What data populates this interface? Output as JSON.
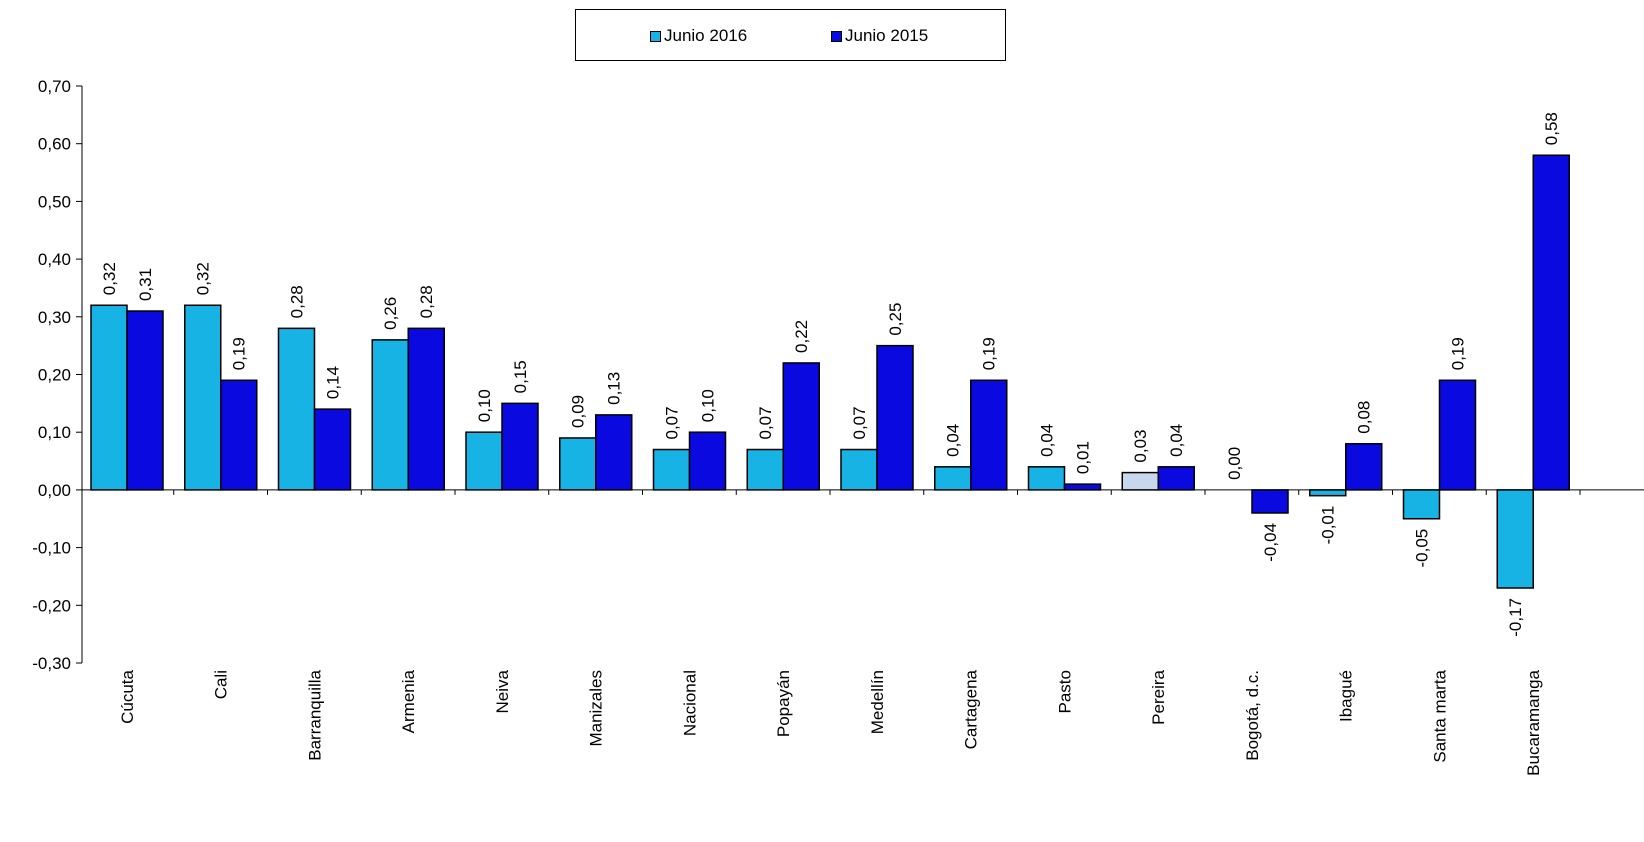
{
  "legend": {
    "series_1": "Junio 2016",
    "series_2": "Junio 2015"
  },
  "colors": {
    "series_1": "#16B3E4",
    "series_2": "#0A0AE0",
    "pereira_2016": "#C8D6EE"
  },
  "chart_data": {
    "type": "bar",
    "categories": [
      "Cúcuta",
      "Cali",
      "Barranquilla",
      "Armenia",
      "Neiva",
      "Manizales",
      "Nacional",
      "Popayán",
      "Medellín",
      "Cartagena",
      "Pasto",
      "Pereira",
      "Bogotá, d.c.",
      "Ibagué",
      "Santa marta",
      "Bucaramanga"
    ],
    "series": [
      {
        "name": "Junio 2016",
        "values": [
          0.32,
          0.32,
          0.28,
          0.26,
          0.1,
          0.09,
          0.07,
          0.07,
          0.07,
          0.04,
          0.04,
          0.03,
          0.0,
          -0.01,
          -0.05,
          -0.17
        ]
      },
      {
        "name": "Junio 2015",
        "values": [
          0.31,
          0.19,
          0.14,
          0.28,
          0.15,
          0.13,
          0.1,
          0.22,
          0.25,
          0.19,
          0.01,
          0.04,
          -0.04,
          0.08,
          0.19,
          0.58
        ]
      }
    ],
    "ylim": [
      -0.3,
      0.7
    ],
    "yticks": [
      "0,70",
      "0,60",
      "0,50",
      "0,40",
      "0,30",
      "0,20",
      "0,10",
      "0,00",
      "-0,10",
      "-0,20",
      "-0,30"
    ],
    "data_labels": [
      [
        "0,32",
        "0,32",
        "0,28",
        "0,26",
        "0,10",
        "0,09",
        "0,07",
        "0,07",
        "0,07",
        "0,04",
        "0,04",
        "0,03",
        "0,00",
        "-0,01",
        "-0,05",
        "-0,17"
      ],
      [
        "0,31",
        "0,19",
        "0,14",
        "0,28",
        "0,15",
        "0,13",
        "0,10",
        "0,22",
        "0,25",
        "0,19",
        "0,01",
        "0,04",
        "-0,04",
        "0,08",
        "0,19",
        "0,58"
      ]
    ],
    "grid": false,
    "legend_position": "top-center"
  }
}
